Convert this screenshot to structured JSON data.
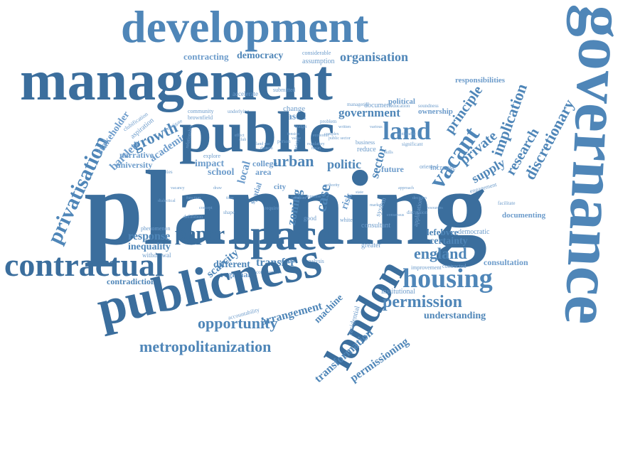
{
  "accent_color": "#4f86b8",
  "words": {
    "development": "development",
    "management": "management",
    "governance": "governance",
    "planning": "planning",
    "public": "public",
    "land": "land",
    "space": "space",
    "publicness": "publicness",
    "contractual": "contractual",
    "london": "london",
    "housing": "housing",
    "permission": "permission",
    "opportunity": "opportunity",
    "metropolitanization": "metropolitanization",
    "privatisation": "privatisation",
    "vacant": "vacant",
    "government": "government",
    "organisation": "organisation",
    "democracy": "democracy",
    "contracting": "contracting",
    "growth": "growth",
    "urban": "urban",
    "england": "england",
    "paper": "paper",
    "transformation": "transformation",
    "permissioning": "permissioning",
    "understanding": "understanding",
    "implication": "implication",
    "research": "research",
    "discretionary": "discretionary",
    "supply": "supply",
    "private": "private",
    "principle": "principle",
    "responsibilities": "responsibilities",
    "consultation": "consultation",
    "certainty": "certainty",
    "lefebvre": "lefebvre",
    "democratic": "democratic",
    "contradiction": "contradiction",
    "inequality": "inequality",
    "response": "response",
    "withdrawal": "withdrawal",
    "scarcity": "scarcity",
    "different": "different",
    "regional": "regional",
    "arrangement": "arrangement",
    "machine": "machine",
    "transfer": "transfer",
    "college": "college",
    "school": "school",
    "impact": "impact",
    "narrative": "narrative",
    "university": "university",
    "academic": "academic",
    "bartlett": "bartlett",
    "stakeholder": "stakeholder",
    "politic": "politic",
    "case": "case",
    "zoning": "zoning",
    "sector": "sector",
    "future": "future",
    "reduce": "reduce",
    "increase": "increase",
    "greater": "greater",
    "institutional": "institutional",
    "documenting": "documenting",
    "based": "based",
    "change": "change",
    "political": "political",
    "ownership": "ownership",
    "document": "document",
    "accelerate": "accelerate",
    "submitted": "submitted",
    "consultant": "consultant",
    "area": "area",
    "city": "city",
    "local": "local",
    "spatial": "spatial",
    "risk": "risk",
    "evidence": "evidence",
    "analysis": "analysis",
    "contracted": "contracted",
    "improvement": "improvement",
    "phenomenon": "phenomenon",
    "residential": "residential",
    "accountability": "accountability",
    "communities": "communities",
    "considerable": "considerable",
    "assumption": "assumption",
    "community": "community",
    "brownfield": "brownfield",
    "aspiration": "aspiration",
    "clubification": "clubification",
    "definition": "definition",
    "authorities": "authorities",
    "application": "application",
    "engagement": "engagement",
    "business": "business",
    "explore": "explore",
    "system": "system",
    "problem": "problem",
    "oriented": "oriented",
    "discussion": "discussion",
    "education": "education",
    "managerial": "managerial",
    "good": "good",
    "require": "require",
    "white": "white",
    "effect": "effect",
    "underlying": "underlying",
    "economic": "economic",
    "land_use": "land use",
    "tension": "tension",
    "facilitate": "facilitate",
    "regulatory": "regulatory",
    "complex": "complex",
    "written": "written",
    "various": "various",
    "noticeable": "noticeable",
    "shape": "shape",
    "vacancy": "vacancy",
    "function": "function",
    "dialectical": "dialectical",
    "concept": "concept",
    "approach": "approach",
    "decision": "decision",
    "resources": "resources",
    "significant": "significant",
    "investigate": "investigate",
    "relationship": "relationship",
    "budget": "budget",
    "expertise": "expertise",
    "soundness": "soundness",
    "authority": "authority",
    "variety": "variety",
    "person": "person",
    "state": "state",
    "market": "market",
    "consensus": "consensus",
    "localism": "localism",
    "draw": "draw",
    "time": "time",
    "turn": "turn",
    "skills": "skills",
    "club": "club",
    "data": "data",
    "value": "value",
    "mean": "mean",
    "public_sector": "public sector"
  }
}
